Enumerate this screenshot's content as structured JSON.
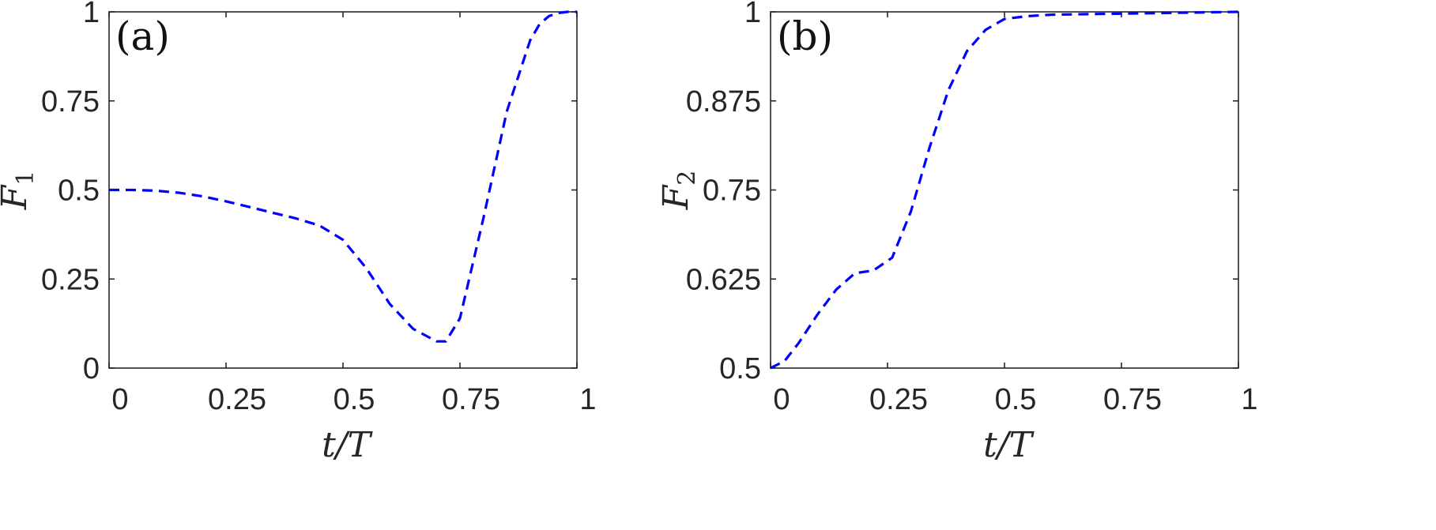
{
  "chart_data": [
    {
      "type": "line",
      "panel_label": "(a)",
      "xlabel": "t/T",
      "ylabel": "F",
      "ylabel_sub": "1",
      "xlim": [
        0,
        1
      ],
      "ylim": [
        0,
        1
      ],
      "xticks": [
        0,
        0.25,
        0.5,
        0.75,
        1
      ],
      "yticks": [
        0,
        0.25,
        0.5,
        0.75,
        1
      ],
      "xtick_labels": [
        "0",
        "0.25",
        "0.5",
        "0.75",
        "1"
      ],
      "ytick_labels": [
        "0",
        "0.25",
        "0.5",
        "0.75",
        "1"
      ],
      "grid": false,
      "series": [
        {
          "color": "#0000ff",
          "line_style": "dashed",
          "x": [
            0,
            0.05,
            0.1,
            0.15,
            0.2,
            0.25,
            0.3,
            0.35,
            0.4,
            0.45,
            0.5,
            0.55,
            0.6,
            0.65,
            0.7,
            0.72,
            0.75,
            0.8,
            0.85,
            0.9,
            0.92,
            0.94,
            0.96,
            0.98,
            1.0
          ],
          "y": [
            0.5,
            0.5,
            0.498,
            0.492,
            0.482,
            0.468,
            0.452,
            0.436,
            0.42,
            0.4,
            0.36,
            0.28,
            0.18,
            0.11,
            0.075,
            0.075,
            0.14,
            0.42,
            0.72,
            0.92,
            0.965,
            0.988,
            0.997,
            1.0,
            1.0
          ]
        }
      ]
    },
    {
      "type": "line",
      "panel_label": "(b)",
      "xlabel": "t/T",
      "ylabel": "F",
      "ylabel_sub": "2",
      "xlim": [
        0,
        1
      ],
      "ylim": [
        0.5,
        1
      ],
      "xticks": [
        0,
        0.25,
        0.5,
        0.75,
        1
      ],
      "yticks": [
        0.5,
        0.625,
        0.75,
        0.875,
        1
      ],
      "xtick_labels": [
        "0",
        "0.25",
        "0.5",
        "0.75",
        "1"
      ],
      "ytick_labels": [
        "0.5",
        "0.625",
        "0.75",
        "0.875",
        "1"
      ],
      "grid": false,
      "series": [
        {
          "color": "#0000ff",
          "line_style": "dashed",
          "x": [
            0,
            0.03,
            0.06,
            0.1,
            0.14,
            0.18,
            0.22,
            0.26,
            0.3,
            0.34,
            0.38,
            0.42,
            0.46,
            0.5,
            0.55,
            0.6,
            0.7,
            0.8,
            0.9,
            1.0
          ],
          "y": [
            0.5,
            0.51,
            0.535,
            0.575,
            0.61,
            0.633,
            0.637,
            0.655,
            0.72,
            0.81,
            0.89,
            0.945,
            0.975,
            0.99,
            0.994,
            0.996,
            0.997,
            0.998,
            0.999,
            1.0
          ]
        }
      ]
    }
  ]
}
